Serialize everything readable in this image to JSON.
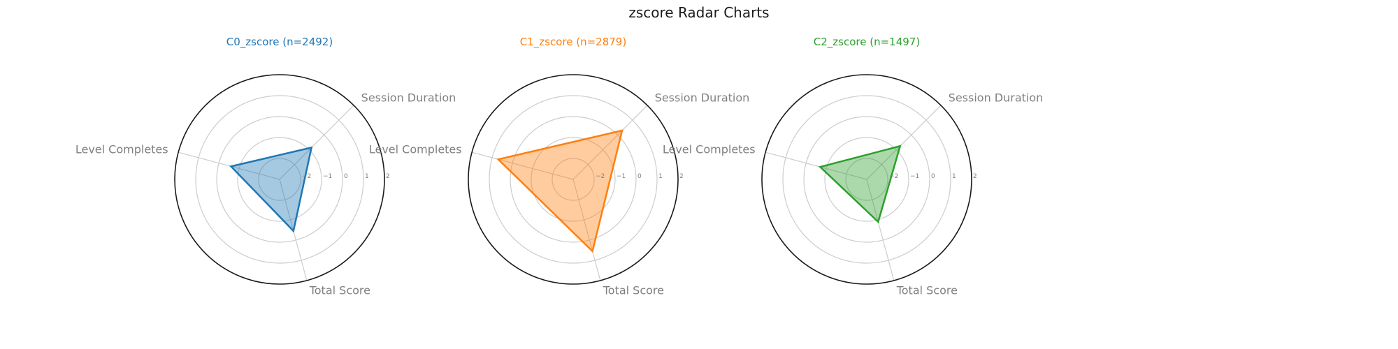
{
  "figure": {
    "title": "zscore Radar Charts"
  },
  "chart_data": [
    {
      "type": "radar",
      "title": "C0_zscore (n=2492)",
      "color": "#1f77b4",
      "axes": [
        "Session Duration",
        "Level Completes",
        "Total Score"
      ],
      "values": [
        -0.85,
        -0.6,
        -0.45
      ],
      "rlim": [
        -3,
        2
      ],
      "rticks": [
        -2,
        -1,
        0,
        1,
        2
      ],
      "rtick_labels": [
        "−2",
        "−1",
        "0",
        "1",
        "2"
      ],
      "grid": true
    },
    {
      "type": "radar",
      "title": "C1_zscore (n=2879)",
      "color": "#ff7f0e",
      "axes": [
        "Session Duration",
        "Level Completes",
        "Total Score"
      ],
      "values": [
        0.3,
        0.7,
        0.55
      ],
      "rlim": [
        -3,
        2
      ],
      "rticks": [
        -2,
        -1,
        0,
        1,
        2
      ],
      "rtick_labels": [
        "−2",
        "−1",
        "0",
        "1",
        "2"
      ],
      "grid": true
    },
    {
      "type": "radar",
      "title": "C2_zscore (n=1497)",
      "color": "#2ca02c",
      "axes": [
        "Session Duration",
        "Level Completes",
        "Total Score"
      ],
      "values": [
        -0.75,
        -0.7,
        -0.9
      ],
      "rlim": [
        -3,
        2
      ],
      "rticks": [
        -2,
        -1,
        0,
        1,
        2
      ],
      "rtick_labels": [
        "−2",
        "−1",
        "0",
        "1",
        "2"
      ],
      "grid": true
    }
  ]
}
